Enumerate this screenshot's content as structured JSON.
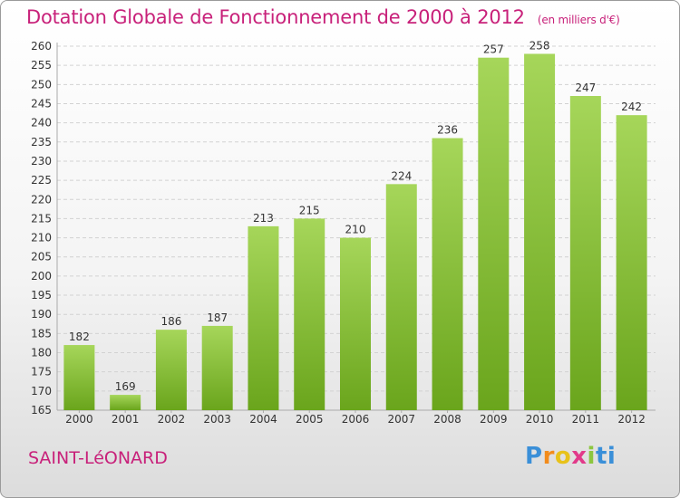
{
  "title": "Dotation Globale de Fonctionnement de 2000 à 2012",
  "unit_label": "(en milliers d'€)",
  "city": "SAINT-LéONARD",
  "brand": {
    "letters": [
      "P",
      "r",
      "o",
      "x",
      "i",
      "ti"
    ],
    "colors": [
      "#3a8fd8",
      "#f28c1c",
      "#e8c21a",
      "#e23a8a",
      "#8cc63f",
      "#3a8fd8"
    ]
  },
  "chart_data": {
    "type": "bar",
    "categories": [
      "2000",
      "2001",
      "2002",
      "2003",
      "2004",
      "2005",
      "2006",
      "2007",
      "2008",
      "2009",
      "2010",
      "2011",
      "2012"
    ],
    "values": [
      182,
      169,
      186,
      187,
      213,
      215,
      210,
      224,
      236,
      257,
      258,
      247,
      242
    ],
    "ylim": [
      165,
      260
    ],
    "ytick_step": 5,
    "grid": true,
    "bar_color": "#8cc63f",
    "title": "Dotation Globale de Fonctionnement de 2000 à 2012",
    "xlabel": "",
    "ylabel": ""
  }
}
